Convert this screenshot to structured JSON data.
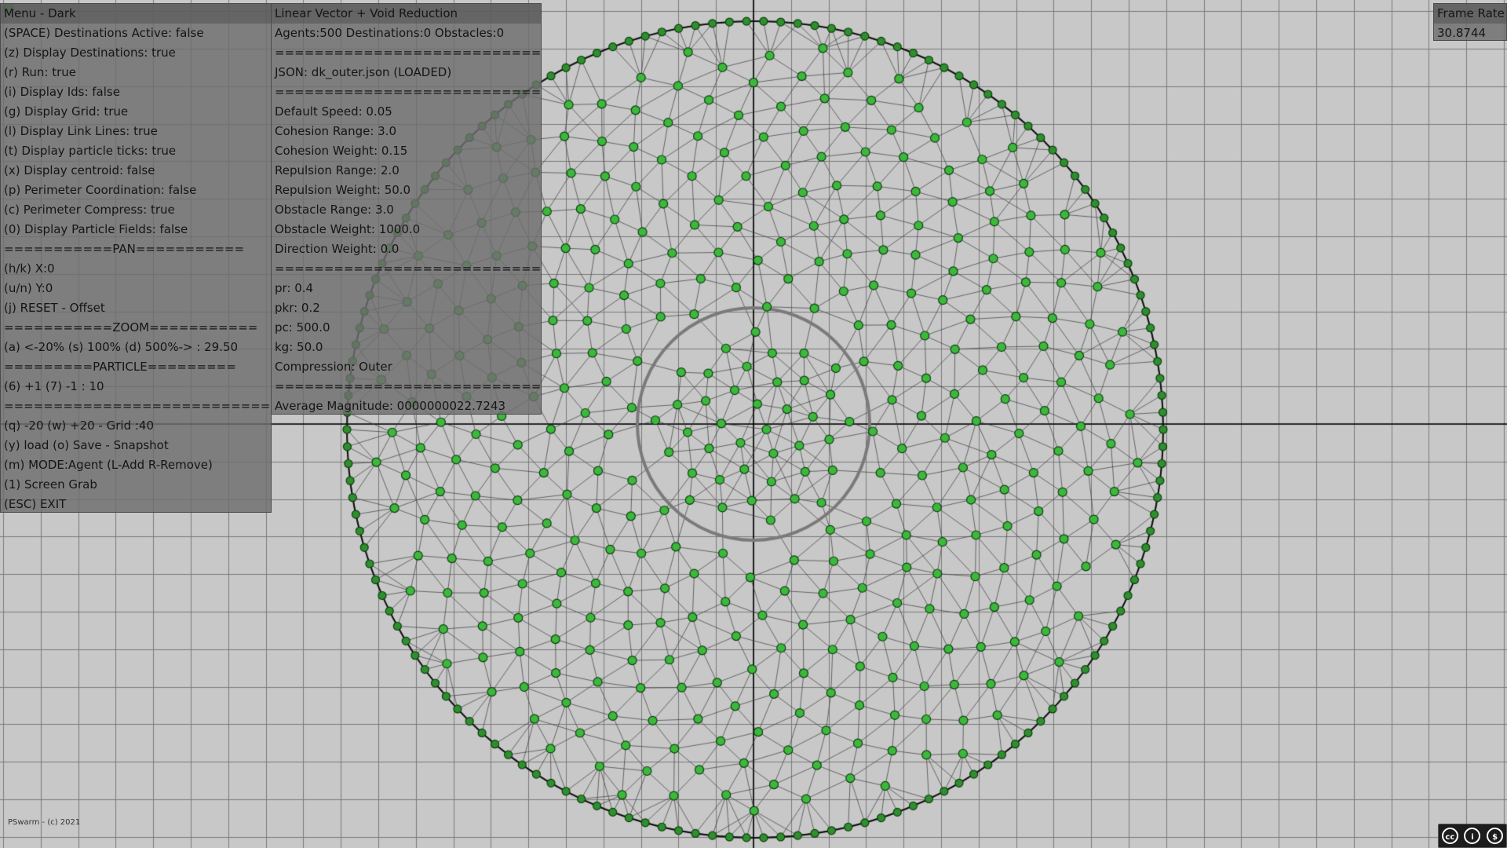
{
  "menu": {
    "title": "Menu - Dark",
    "lines": [
      "(SPACE) Destinations Active: false",
      "(z) Display Destinations: true",
      "(r) Run: true",
      "(i) Display Ids: false",
      "(g) Display Grid: true",
      "(l) Display Link Lines: true",
      "(t) Display particle ticks: true",
      "(x) Display centroid: false",
      "(p) Perimeter Coordination: false",
      "(c) Perimeter Compress: true",
      "(0) Display Particle Fields: false",
      "===========PAN===========",
      "(h/k) X:0",
      "(u/n) Y:0",
      "(j) RESET - Offset",
      "===========ZOOM===========",
      "(a) <-20% (s) 100% (d) 500%-> : 29.50",
      "=========PARTICLE=========",
      "(6) +1 (7) -1 : 10",
      "==============================",
      "(q) -20 (w) +20 - Grid :40",
      "(y) load (o) Save - Snapshot",
      "(m) MODE:Agent (L-Add R-Remove)",
      "(1) Screen Grab",
      "(ESC) EXIT"
    ]
  },
  "stats": {
    "title": "Linear Vector + Void Reduction",
    "lines": [
      "Agents:500 Destinations:0 Obstacles:0",
      "==============================",
      "JSON: dk_outer.json (LOADED)",
      "==============================",
      "Default Speed: 0.05",
      "Cohesion Range: 3.0",
      "Cohesion Weight: 0.15",
      "Repulsion Range: 2.0",
      "Repulsion Weight: 50.0",
      "Obstacle Range: 3.0",
      "Obstacle Weight: 1000.0",
      "Direction Weight: 0.0",
      "==============================",
      "pr: 0.4",
      "pkr: 0.2",
      "pc: 500.0",
      "kg: 50.0",
      "Compression: Outer",
      "==============================",
      "Average Magnitude: 0000000022.7243"
    ]
  },
  "frame_rate": {
    "label": "Frame Rate",
    "value": "30.8744"
  },
  "footer": {
    "copyright": "PSwarm - (c) 2021",
    "license_badge": [
      "cc",
      "i",
      "$"
    ]
  },
  "colors": {
    "background": "#c8c8c8",
    "grid_line": "#7a7a7a",
    "axis_line": "#000000",
    "agent_fill": "#3cb83c",
    "agent_stroke": "#0b3d0b",
    "link_line": "#3a3a3a",
    "void_ring": "#7a7a7a"
  },
  "simulation": {
    "agent_count": 500,
    "grid_size": 40,
    "zoom": 29.5
  }
}
